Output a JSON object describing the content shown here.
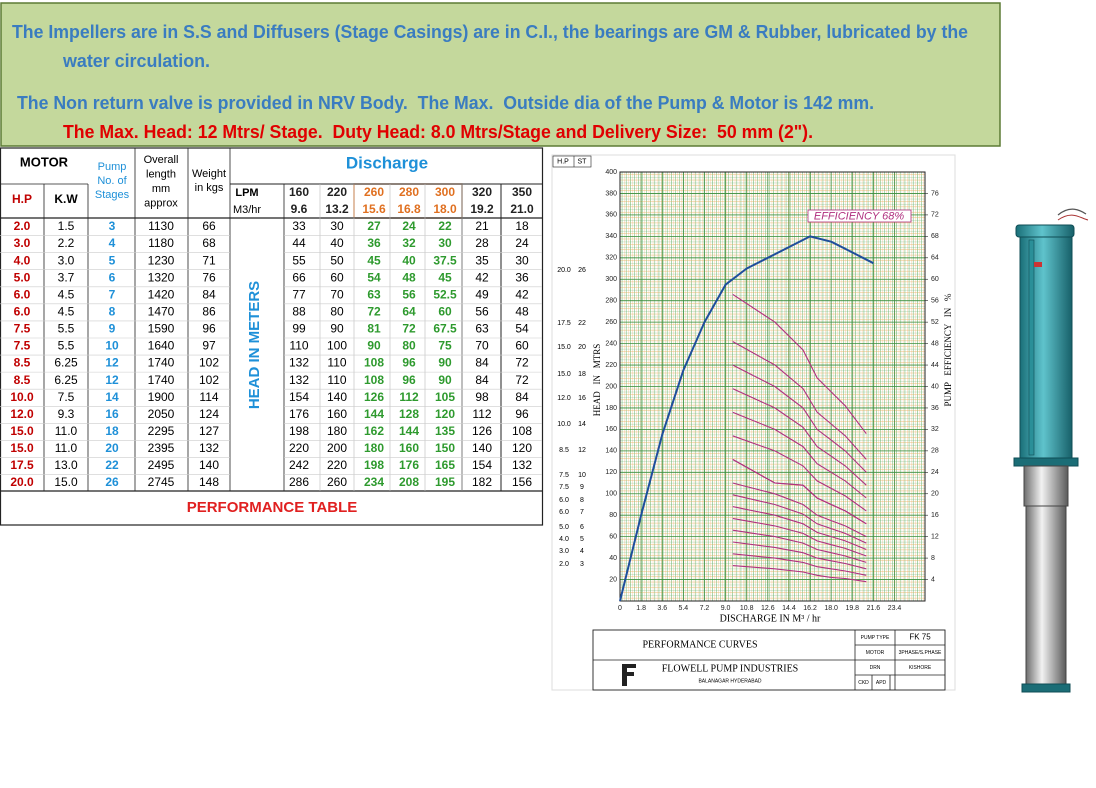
{
  "header": {
    "lines": [
      "The Impellers are in S.S and Diffusers (Stage Casings) are in C.I., the bearings are GM & Rubber, lubricated by the",
      "water circulation.",
      "The Non return valve is provided in NRV Body.  The Max.  Outside dia of the Pump & Motor is 142 mm.",
      "The Max. Head: 12 Mtrs/ Stage.  Duty Head: 8.0 Mtrs/Stage and Delivery Size:  50 mm (2\")."
    ]
  },
  "table": {
    "motor_header": "MOTOR",
    "hp_header": "H.P",
    "kw_header": "K.W",
    "stages_header": [
      "Pump",
      "No. of",
      "Stages"
    ],
    "length_header": [
      "Overall",
      "length",
      "mm",
      "approx"
    ],
    "weight_header": [
      "Weight",
      "in kgs"
    ],
    "discharge_header": "Discharge",
    "lpm_label": "LPM",
    "m3hr_label": "M3/hr",
    "lpm": [
      160,
      220,
      260,
      280,
      300,
      320,
      350
    ],
    "m3hr": [
      9.6,
      13.2,
      15.6,
      16.8,
      "18.0",
      19.2,
      "21.0"
    ],
    "head_label": "HEAD IN METERS",
    "caption": "PERFORMANCE TABLE",
    "rows": [
      {
        "hp": "2.0",
        "kw": 1.5,
        "stages": 3,
        "length": 1130,
        "weight": 66,
        "heads": [
          33,
          30,
          27,
          24,
          22,
          21,
          18
        ]
      },
      {
        "hp": "3.0",
        "kw": 2.2,
        "stages": 4,
        "length": 1180,
        "weight": 68,
        "heads": [
          44,
          40,
          36,
          32,
          30,
          28,
          24
        ]
      },
      {
        "hp": "4.0",
        "kw": "3.0",
        "stages": 5,
        "length": 1230,
        "weight": 71,
        "heads": [
          55,
          50,
          45,
          40,
          37.5,
          35,
          30
        ]
      },
      {
        "hp": "5.0",
        "kw": 3.7,
        "stages": 6,
        "length": 1320,
        "weight": 76,
        "heads": [
          66,
          60,
          54,
          48,
          45,
          42,
          36
        ]
      },
      {
        "hp": "6.0",
        "kw": 4.5,
        "stages": 7,
        "length": 1420,
        "weight": 84,
        "heads": [
          77,
          70,
          63,
          56,
          52.5,
          49,
          42
        ]
      },
      {
        "hp": "6.0",
        "kw": 4.5,
        "stages": 8,
        "length": 1470,
        "weight": 86,
        "heads": [
          88,
          80,
          72,
          64,
          60,
          56,
          48
        ]
      },
      {
        "hp": "7.5",
        "kw": 5.5,
        "stages": 9,
        "length": 1590,
        "weight": 96,
        "heads": [
          99,
          90,
          81,
          72,
          67.5,
          63,
          54
        ]
      },
      {
        "hp": "7.5",
        "kw": 5.5,
        "stages": 10,
        "length": 1640,
        "weight": 97,
        "heads": [
          110,
          100,
          90,
          80,
          75,
          70,
          60
        ]
      },
      {
        "hp": "8.5",
        "kw": 6.25,
        "stages": 12,
        "length": 1740,
        "weight": 102,
        "heads": [
          132,
          110,
          108,
          96,
          90,
          84,
          72
        ]
      },
      {
        "hp": "8.5",
        "kw": 6.25,
        "stages": 12,
        "length": 1740,
        "weight": 102,
        "heads": [
          132,
          110,
          108,
          96,
          90,
          84,
          72
        ]
      },
      {
        "hp": "10.0",
        "kw": 7.5,
        "stages": 14,
        "length": 1900,
        "weight": 114,
        "heads": [
          154,
          140,
          126,
          112,
          105,
          98,
          84
        ]
      },
      {
        "hp": "12.0",
        "kw": 9.3,
        "stages": 16,
        "length": 2050,
        "weight": 124,
        "heads": [
          176,
          160,
          144,
          128,
          120,
          112,
          96
        ]
      },
      {
        "hp": "15.0",
        "kw": "11.0",
        "stages": 18,
        "length": 2295,
        "weight": 127,
        "heads": [
          198,
          180,
          162,
          144,
          135,
          126,
          108
        ]
      },
      {
        "hp": "15.0",
        "kw": "11.0",
        "stages": 20,
        "length": 2395,
        "weight": 132,
        "heads": [
          220,
          200,
          180,
          160,
          150,
          140,
          120
        ]
      },
      {
        "hp": "17.5",
        "kw": "13.0",
        "stages": 22,
        "length": 2495,
        "weight": 140,
        "heads": [
          242,
          220,
          198,
          176,
          165,
          154,
          132
        ]
      },
      {
        "hp": "20.0",
        "kw": "15.0",
        "stages": 26,
        "length": 2745,
        "weight": 148,
        "heads": [
          286,
          260,
          234,
          208,
          195,
          182,
          156
        ]
      }
    ]
  },
  "chart_data": {
    "type": "line",
    "ylabel": "HEAD   IN   MTRS",
    "y2label": "PUMP   EFFICIENCY   IN   %",
    "xlabel": "DISCHARGE IN M³ / hr",
    "annotation": "EFFICIENCY 68%",
    "xlim": [
      0,
      26
    ],
    "ylim": [
      0,
      400
    ],
    "y2lim": [
      0,
      80
    ],
    "xticks": [
      0,
      1.8,
      3.6,
      5.4,
      7.2,
      {
        "value": 9,
        "label": "9.0"
      },
      10.8,
      12.6,
      14.4,
      16.2,
      {
        "value": 18,
        "label": "18.0"
      },
      19.8,
      21.6,
      23.4
    ],
    "yticks": [
      20,
      40,
      60,
      80,
      100,
      120,
      140,
      160,
      180,
      200,
      220,
      240,
      260,
      280,
      300,
      320,
      340,
      360,
      380,
      400
    ],
    "y2ticks": [
      4,
      8,
      12,
      16,
      20,
      24,
      28,
      32,
      36,
      40,
      44,
      48,
      52,
      56,
      60,
      64,
      68,
      72,
      76
    ],
    "x": [
      0,
      1.8,
      3.6,
      5.4,
      7.2,
      9,
      10.8,
      12.6,
      14.4,
      16.2,
      18,
      19.8,
      21.6
    ],
    "series": [
      {
        "name": "EFFICIENCY",
        "color": "#1f4e9c",
        "axis": "y2",
        "values": [
          0,
          16,
          31,
          43,
          52,
          59,
          62,
          64,
          66,
          68,
          67,
          65,
          63
        ]
      }
    ],
    "head_curve_color": "#b0307f",
    "grid": true,
    "label_headers": [
      "H.P",
      "ST"
    ],
    "curve_labels": [
      [
        "20.0",
        26
      ],
      [
        "17.5",
        22
      ],
      [
        "15.0",
        20
      ],
      [
        "15.0",
        18
      ],
      [
        "12.0",
        16
      ],
      [
        "10.0",
        14
      ],
      [
        "8.5",
        12
      ],
      [
        "7.5",
        10
      ],
      [
        "7.5",
        9
      ],
      [
        "6.0",
        8
      ],
      [
        "6.0",
        7
      ],
      [
        "5.0",
        6
      ],
      [
        "4.0",
        5
      ],
      [
        "3.0",
        4
      ],
      [
        "2.0",
        3
      ]
    ],
    "title_block": {
      "title": "PERFORMANCE CURVES",
      "company": "FLOWELL PUMP INDUSTRIES",
      "place": "BALANAGAR HYDERABAD",
      "pump_type_label": "PUMP TYPE",
      "pump_type": "FK 75",
      "motor_label": "MOTOR",
      "motor": "3PHASE/S.PHASE",
      "drn_label": "DRN",
      "drn": "KISHORE",
      "ckd_label": "CKD",
      "ckd": "APD"
    }
  }
}
